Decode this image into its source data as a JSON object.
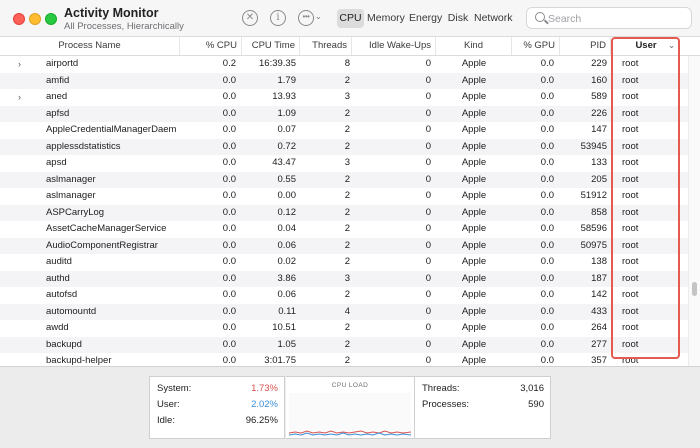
{
  "window": {
    "title": "Activity Monitor",
    "subtitle": "All Processes, Hierarchically"
  },
  "toolbar": {
    "stop_icon": "xmark-circle-icon",
    "info_icon": "info-circle-icon",
    "more_icon": "ellipsis-circle-icon",
    "tabs": [
      {
        "label": "CPU",
        "selected": true
      },
      {
        "label": "Memory",
        "selected": false
      },
      {
        "label": "Energy",
        "selected": false
      },
      {
        "label": "Disk",
        "selected": false
      },
      {
        "label": "Network",
        "selected": false
      }
    ],
    "search": {
      "placeholder": "Search",
      "value": ""
    }
  },
  "columns": [
    "Process Name",
    "% CPU",
    "CPU Time",
    "Threads",
    "Idle Wake-Ups",
    "Kind",
    "% GPU",
    "PID",
    "User"
  ],
  "sort_column": "User",
  "rows": [
    {
      "expandable": true,
      "name": "airportd",
      "cpu": "0.2",
      "cpu_time": "16:39.35",
      "threads": "8",
      "idle_wakeups": "0",
      "kind": "Apple",
      "gpu": "0.0",
      "pid": "229",
      "user": "root"
    },
    {
      "expandable": false,
      "name": "amfid",
      "cpu": "0.0",
      "cpu_time": "1.79",
      "threads": "2",
      "idle_wakeups": "0",
      "kind": "Apple",
      "gpu": "0.0",
      "pid": "160",
      "user": "root"
    },
    {
      "expandable": true,
      "name": "aned",
      "cpu": "0.0",
      "cpu_time": "13.93",
      "threads": "3",
      "idle_wakeups": "0",
      "kind": "Apple",
      "gpu": "0.0",
      "pid": "589",
      "user": "root"
    },
    {
      "expandable": false,
      "name": "apfsd",
      "cpu": "0.0",
      "cpu_time": "1.09",
      "threads": "2",
      "idle_wakeups": "0",
      "kind": "Apple",
      "gpu": "0.0",
      "pid": "226",
      "user": "root"
    },
    {
      "expandable": false,
      "name": "AppleCredentialManagerDaemon",
      "cpu": "0.0",
      "cpu_time": "0.07",
      "threads": "2",
      "idle_wakeups": "0",
      "kind": "Apple",
      "gpu": "0.0",
      "pid": "147",
      "user": "root"
    },
    {
      "expandable": false,
      "name": "applessdstatistics",
      "cpu": "0.0",
      "cpu_time": "0.72",
      "threads": "2",
      "idle_wakeups": "0",
      "kind": "Apple",
      "gpu": "0.0",
      "pid": "53945",
      "user": "root"
    },
    {
      "expandable": false,
      "name": "apsd",
      "cpu": "0.0",
      "cpu_time": "43.47",
      "threads": "3",
      "idle_wakeups": "0",
      "kind": "Apple",
      "gpu": "0.0",
      "pid": "133",
      "user": "root"
    },
    {
      "expandable": false,
      "name": "aslmanager",
      "cpu": "0.0",
      "cpu_time": "0.55",
      "threads": "2",
      "idle_wakeups": "0",
      "kind": "Apple",
      "gpu": "0.0",
      "pid": "205",
      "user": "root"
    },
    {
      "expandable": false,
      "name": "aslmanager",
      "cpu": "0.0",
      "cpu_time": "0.00",
      "threads": "2",
      "idle_wakeups": "0",
      "kind": "Apple",
      "gpu": "0.0",
      "pid": "51912",
      "user": "root"
    },
    {
      "expandable": false,
      "name": "ASPCarryLog",
      "cpu": "0.0",
      "cpu_time": "0.12",
      "threads": "2",
      "idle_wakeups": "0",
      "kind": "Apple",
      "gpu": "0.0",
      "pid": "858",
      "user": "root"
    },
    {
      "expandable": false,
      "name": "AssetCacheManagerService",
      "cpu": "0.0",
      "cpu_time": "0.04",
      "threads": "2",
      "idle_wakeups": "0",
      "kind": "Apple",
      "gpu": "0.0",
      "pid": "58596",
      "user": "root"
    },
    {
      "expandable": false,
      "name": "AudioComponentRegistrar",
      "cpu": "0.0",
      "cpu_time": "0.06",
      "threads": "2",
      "idle_wakeups": "0",
      "kind": "Apple",
      "gpu": "0.0",
      "pid": "50975",
      "user": "root"
    },
    {
      "expandable": false,
      "name": "auditd",
      "cpu": "0.0",
      "cpu_time": "0.02",
      "threads": "2",
      "idle_wakeups": "0",
      "kind": "Apple",
      "gpu": "0.0",
      "pid": "138",
      "user": "root"
    },
    {
      "expandable": false,
      "name": "authd",
      "cpu": "0.0",
      "cpu_time": "3.86",
      "threads": "3",
      "idle_wakeups": "0",
      "kind": "Apple",
      "gpu": "0.0",
      "pid": "187",
      "user": "root"
    },
    {
      "expandable": false,
      "name": "autofsd",
      "cpu": "0.0",
      "cpu_time": "0.06",
      "threads": "2",
      "idle_wakeups": "0",
      "kind": "Apple",
      "gpu": "0.0",
      "pid": "142",
      "user": "root"
    },
    {
      "expandable": false,
      "name": "automountd",
      "cpu": "0.0",
      "cpu_time": "0.11",
      "threads": "4",
      "idle_wakeups": "0",
      "kind": "Apple",
      "gpu": "0.0",
      "pid": "433",
      "user": "root"
    },
    {
      "expandable": false,
      "name": "awdd",
      "cpu": "0.0",
      "cpu_time": "10.51",
      "threads": "2",
      "idle_wakeups": "0",
      "kind": "Apple",
      "gpu": "0.0",
      "pid": "264",
      "user": "root"
    },
    {
      "expandable": false,
      "name": "backupd",
      "cpu": "0.0",
      "cpu_time": "1.05",
      "threads": "2",
      "idle_wakeups": "0",
      "kind": "Apple",
      "gpu": "0.0",
      "pid": "277",
      "user": "root"
    },
    {
      "expandable": false,
      "name": "backupd-helper",
      "cpu": "0.0",
      "cpu_time": "3:01.75",
      "threads": "2",
      "idle_wakeups": "0",
      "kind": "Apple",
      "gpu": "0.0",
      "pid": "357",
      "user": "root"
    }
  ],
  "summary": {
    "system_label": "System:",
    "system_value": "1.73%",
    "user_label": "User:",
    "user_value": "2.02%",
    "idle_label": "Idle:",
    "idle_value": "96.25%",
    "graph_title": "CPU LOAD",
    "threads_label": "Threads:",
    "threads_value": "3,016",
    "processes_label": "Processes:",
    "processes_value": "590"
  },
  "colors": {
    "system": "#d9534f",
    "user": "#3b8fd9",
    "highlight": "#e45a4e",
    "tab_selected_bg": "#dcdcdc"
  }
}
